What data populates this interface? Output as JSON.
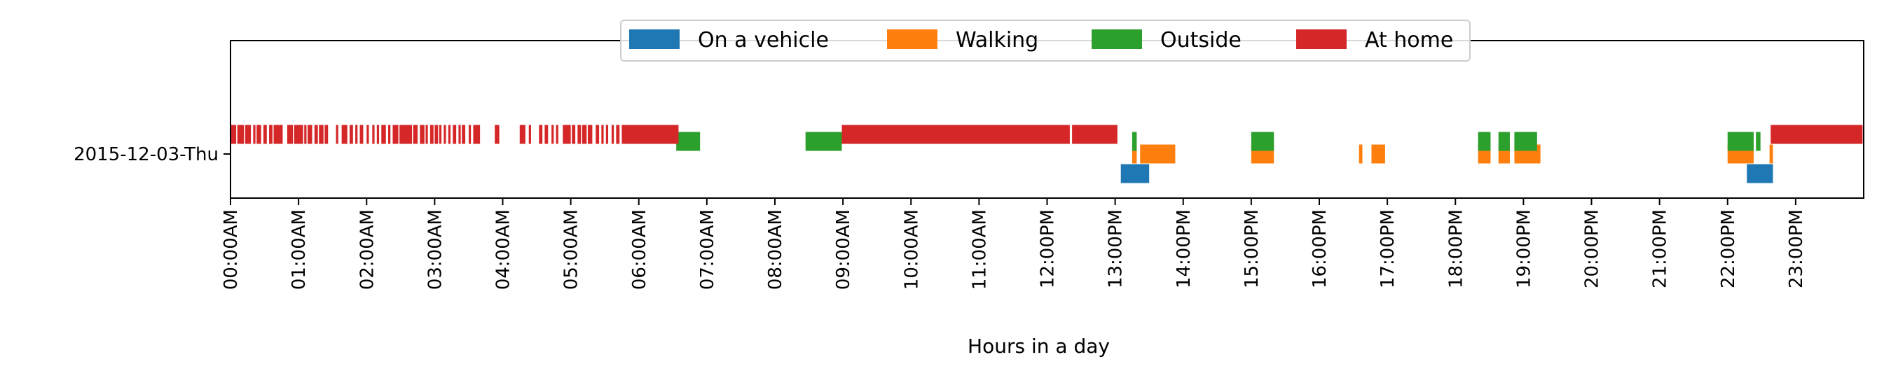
{
  "chart_data": {
    "type": "broken_barh",
    "title": "",
    "xlabel": "Hours in a day",
    "ylabel": "",
    "y_categories": [
      "2015-12-03-Thu"
    ],
    "xlim": [
      "00:00",
      "24:00"
    ],
    "x_tick_labels": [
      "00:00AM",
      "01:00AM",
      "02:00AM",
      "03:00AM",
      "04:00AM",
      "05:00AM",
      "06:00AM",
      "07:00AM",
      "08:00AM",
      "09:00AM",
      "10:00AM",
      "11:00AM",
      "12:00PM",
      "13:00PM",
      "14:00PM",
      "15:00PM",
      "16:00PM",
      "17:00PM",
      "18:00PM",
      "19:00PM",
      "20:00PM",
      "21:00PM",
      "22:00PM",
      "23:00PM"
    ],
    "legend_position": "top-center",
    "grid": false,
    "series": [
      {
        "name": "On a vehicle",
        "color": "#1f77b4",
        "intervals": [
          [
            "13:05",
            "13:30"
          ],
          [
            "13:30",
            "13:28"
          ],
          [
            "22:17",
            "22:40"
          ]
        ]
      },
      {
        "name": "Walking",
        "color": "#ff7f0e",
        "intervals": [
          [
            "13:15",
            "13:19"
          ],
          [
            "13:22",
            "13:53"
          ],
          [
            "15:00",
            "15:20"
          ],
          [
            "16:35",
            "16:38"
          ],
          [
            "16:46",
            "16:58"
          ],
          [
            "18:20",
            "18:31"
          ],
          [
            "18:38",
            "18:48"
          ],
          [
            "18:52",
            "19:15"
          ],
          [
            "22:00",
            "22:23"
          ],
          [
            "22:37",
            "22:40"
          ]
        ]
      },
      {
        "name": "Outside",
        "color": "#2ca02c",
        "intervals": [
          [
            "06:33",
            "06:54"
          ],
          [
            "08:27",
            "08:59"
          ],
          [
            "13:15",
            "13:19"
          ],
          [
            "15:00",
            "15:20"
          ],
          [
            "18:20",
            "18:31"
          ],
          [
            "18:38",
            "18:48"
          ],
          [
            "18:52",
            "19:11"
          ],
          [
            "19:09",
            "19:12"
          ],
          [
            "22:00",
            "22:23"
          ],
          [
            "22:25",
            "22:29"
          ]
        ]
      },
      {
        "name": "At home",
        "color": "#d62728",
        "intervals": [
          [
            "00:00",
            "00:05"
          ],
          [
            "00:06",
            "00:12"
          ],
          [
            "00:13",
            "00:18"
          ],
          [
            "00:20",
            "00:22"
          ],
          [
            "00:23",
            "00:27"
          ],
          [
            "00:29",
            "00:32"
          ],
          [
            "00:34",
            "00:37"
          ],
          [
            "00:38",
            "00:46"
          ],
          [
            "00:50",
            "00:55"
          ],
          [
            "00:56",
            "01:04"
          ],
          [
            "01:05",
            "01:07"
          ],
          [
            "01:08",
            "01:12"
          ],
          [
            "01:14",
            "01:17"
          ],
          [
            "01:18",
            "01:22"
          ],
          [
            "01:23",
            "01:26"
          ],
          [
            "01:33",
            "01:35"
          ],
          [
            "01:38",
            "01:43"
          ],
          [
            "01:45",
            "01:48"
          ],
          [
            "01:50",
            "01:52"
          ],
          [
            "01:54",
            "01:57"
          ],
          [
            "02:00",
            "02:02"
          ],
          [
            "02:05",
            "02:07"
          ],
          [
            "02:09",
            "02:11"
          ],
          [
            "02:13",
            "02:17"
          ],
          [
            "02:19",
            "02:21"
          ],
          [
            "02:23",
            "02:28"
          ],
          [
            "02:29",
            "02:40"
          ],
          [
            "02:41",
            "02:45"
          ],
          [
            "02:47",
            "02:51"
          ],
          [
            "02:52",
            "02:54"
          ],
          [
            "02:56",
            "02:59"
          ],
          [
            "03:00",
            "03:03"
          ],
          [
            "03:04",
            "03:06"
          ],
          [
            "03:08",
            "03:10"
          ],
          [
            "03:12",
            "03:14"
          ],
          [
            "03:16",
            "03:19"
          ],
          [
            "03:21",
            "03:23"
          ],
          [
            "03:24",
            "03:27"
          ],
          [
            "03:30",
            "03:32"
          ],
          [
            "03:34",
            "03:40"
          ],
          [
            "03:53",
            "03:57"
          ],
          [
            "04:15",
            "04:20"
          ],
          [
            "04:23",
            "04:25"
          ],
          [
            "04:32",
            "04:35"
          ],
          [
            "04:37",
            "04:40"
          ],
          [
            "04:43",
            "04:45"
          ],
          [
            "04:47",
            "04:49"
          ],
          [
            "04:53",
            "05:00"
          ],
          [
            "05:01",
            "05:04"
          ],
          [
            "05:06",
            "05:09"
          ],
          [
            "05:10",
            "05:14"
          ],
          [
            "05:15",
            "05:19"
          ],
          [
            "05:22",
            "05:25"
          ],
          [
            "05:27",
            "05:29"
          ],
          [
            "05:31",
            "05:33"
          ],
          [
            "05:36",
            "05:38"
          ],
          [
            "05:40",
            "05:43"
          ],
          [
            "05:45",
            "06:35"
          ],
          [
            "08:59",
            "12:20"
          ],
          [
            "12:22",
            "13:02"
          ],
          [
            "22:38",
            "23:59"
          ]
        ]
      }
    ]
  }
}
